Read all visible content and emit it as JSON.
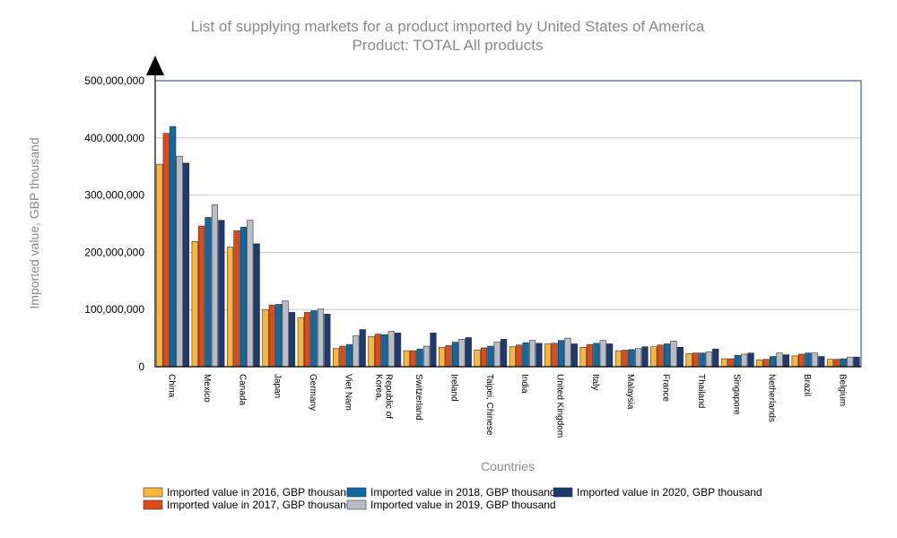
{
  "chart_data": {
    "type": "bar",
    "title": "List of supplying markets for a product imported by United States of America",
    "subtitle": "Product: TOTAL All products",
    "xlabel": "Countries",
    "ylabel": "Imported value, GBP thousand",
    "ylim": [
      0,
      500000000
    ],
    "yticks": [
      0,
      100000000,
      200000000,
      300000000,
      400000000,
      500000000
    ],
    "ytick_labels": [
      "0",
      "100,000,000",
      "200,000,000",
      "300,000,000",
      "400,000,000",
      "500,000,000"
    ],
    "grid": true,
    "legend_position": "bottom",
    "categories": [
      "China",
      "Mexico",
      "Canada",
      "Japan",
      "Germany",
      "Viet Nam",
      "Korea, Republic of",
      "Switzerland",
      "Ireland",
      "Taipei, Chinese",
      "India",
      "United Kingdom",
      "Italy",
      "Malaysia",
      "France",
      "Thailand",
      "Singapore",
      "Netherlands",
      "Brazil",
      "Belgium"
    ],
    "series": [
      {
        "name": "Imported value in 2016, GBP thousand",
        "color": "#f6b73c",
        "values": [
          354000000,
          219000000,
          209000000,
          100000000,
          86000000,
          32000000,
          53000000,
          28000000,
          34000000,
          29000000,
          35000000,
          40000000,
          34000000,
          28000000,
          35000000,
          23000000,
          14000000,
          12000000,
          19000000,
          13000000
        ]
      },
      {
        "name": "Imported value in 2017, GBP thousand",
        "color": "#dc4c1a",
        "values": [
          408000000,
          246000000,
          238000000,
          108000000,
          95000000,
          36000000,
          57000000,
          28000000,
          37000000,
          33000000,
          38000000,
          41000000,
          39000000,
          29000000,
          38000000,
          24000000,
          14000000,
          13000000,
          22000000,
          13000000
        ]
      },
      {
        "name": "Imported value in 2018, GBP thousand",
        "color": "#0f6aa3",
        "values": [
          420000000,
          261000000,
          244000000,
          109000000,
          98000000,
          39000000,
          56000000,
          31000000,
          43000000,
          36000000,
          42000000,
          46000000,
          41000000,
          30000000,
          40000000,
          24000000,
          20000000,
          18000000,
          24000000,
          14000000
        ]
      },
      {
        "name": "Imported value in 2019, GBP thousand",
        "color": "#b8bec8",
        "values": [
          368000000,
          283000000,
          256000000,
          115000000,
          101000000,
          54000000,
          62000000,
          36000000,
          48000000,
          43000000,
          46000000,
          50000000,
          46000000,
          32000000,
          45000000,
          26000000,
          22000000,
          24000000,
          24000000,
          17000000
        ]
      },
      {
        "name": "Imported value in 2020, GBP thousand",
        "color": "#1e3a6e",
        "values": [
          356000000,
          256000000,
          215000000,
          95000000,
          92000000,
          65000000,
          59000000,
          59000000,
          51000000,
          48000000,
          41000000,
          40000000,
          40000000,
          35000000,
          34000000,
          31000000,
          24000000,
          21000000,
          18000000,
          17000000
        ]
      }
    ]
  }
}
